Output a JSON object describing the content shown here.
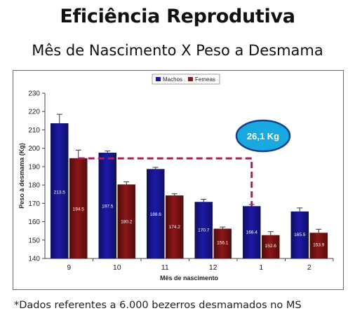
{
  "page": {
    "title": "Eficiência Reprodutiva",
    "subtitle": "Mês de Nascimento X Peso a Desmama",
    "footnote": "*Dados referentes a 6.000 bezerros desmamados no MS"
  },
  "chart_data": {
    "type": "bar",
    "title": "",
    "xlabel": "Mês de nascimento",
    "ylabel": "Peso à desmama (Kg)",
    "ylim": [
      140,
      230
    ],
    "yticks": [
      140,
      150,
      160,
      170,
      180,
      190,
      200,
      210,
      220,
      230
    ],
    "grid": false,
    "legend_position": "top-center",
    "categories": [
      "9",
      "10",
      "11",
      "12",
      "1",
      "2"
    ],
    "series": [
      {
        "name": "Machos",
        "color": "#1b1aa8",
        "values": [
          213.5,
          197.5,
          188.6,
          170.7,
          168.4,
          165.5
        ],
        "labels": [
          "213.5",
          "197.5",
          "188.6",
          "170.7",
          "168.4",
          "165.5"
        ],
        "errors": [
          5,
          1,
          1,
          1.5,
          1,
          2
        ]
      },
      {
        "name": "Femeas",
        "color": "#8c1616",
        "values": [
          194.5,
          180.2,
          174.2,
          156.1,
          152.6,
          153.9
        ],
        "labels": [
          "194.5",
          "180.2",
          "174.2",
          "156.1",
          "152.6",
          "153.9"
        ],
        "errors": [
          4.5,
          1.5,
          1,
          1,
          2,
          2
        ]
      }
    ],
    "annotation": {
      "text": "26,1 Kg",
      "from_value": 194.5,
      "to_value": 168.4,
      "line_color": "#b01a5a",
      "bubble_fill": "#17a9e0",
      "bubble_border": "#1a3f8a"
    }
  }
}
